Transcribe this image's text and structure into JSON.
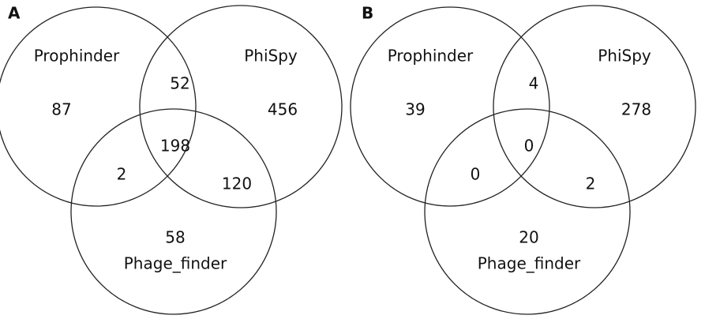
{
  "panels": [
    {
      "label": "A",
      "sets": {
        "prophinder": "Prophinder",
        "phispy": "PhiSpy",
        "phage_finder": "Phage_finder"
      },
      "counts": {
        "prophinder_only": "87",
        "prophinder_phispy": "52",
        "phispy_only": "456",
        "all_three": "198",
        "prophinder_phage_finder": "2",
        "phispy_phage_finder": "120",
        "phage_finder_only": "58"
      }
    },
    {
      "label": "B",
      "sets": {
        "prophinder": "Prophinder",
        "phispy": "PhiSpy",
        "phage_finder": "Phage_finder"
      },
      "counts": {
        "prophinder_only": "39",
        "prophinder_phispy": "4",
        "phispy_only": "278",
        "all_three": "0",
        "prophinder_phage_finder": "0",
        "phispy_phage_finder": "2",
        "phage_finder_only": "20"
      }
    }
  ]
}
